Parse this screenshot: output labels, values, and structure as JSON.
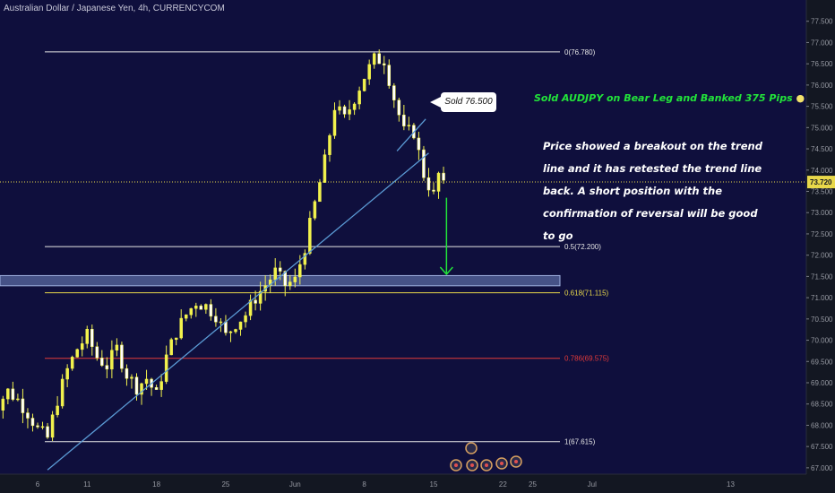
{
  "header": {
    "title": "Australian Dollar / Japanese Yen, 4h, CURRENCYCOM"
  },
  "colors": {
    "bg": "#0f0f3d",
    "axis_bg": "#131722",
    "candle": "#f2f24d",
    "trend": "#5b9bd5",
    "fib_white": "#e6e6e6",
    "fib_yellow": "#e8d84a",
    "fib_red": "#e23a3a",
    "arrow": "#22e43a",
    "zone": "#6a7aa8"
  },
  "annotations": {
    "green_note": "Sold AUDJPY on Bear Leg and Banked 375 Pips",
    "white_note": "Price showed a breakout on the trend line and it has retested the trend line back. A short position with the confirmation of reversal will be good to go",
    "sold_callout": "Sold 76.500"
  },
  "chart_data": {
    "type": "candlestick",
    "title": "Australian Dollar / Japanese Yen, 4h, CURRENCYCOM",
    "ylim": [
      66.85,
      78.0
    ],
    "price_ticks": [
      "77.500",
      "77.000",
      "76.500",
      "76.000",
      "75.500",
      "75.000",
      "74.500",
      "74.000",
      "73.500",
      "73.000",
      "72.500",
      "72.000",
      "71.500",
      "71.000",
      "70.500",
      "70.000",
      "69.500",
      "69.000",
      "68.500",
      "68.000",
      "67.500",
      "67.000"
    ],
    "price_tick_values": [
      77.5,
      77.0,
      76.5,
      76.0,
      75.5,
      75.0,
      74.5,
      74.0,
      73.5,
      73.0,
      72.5,
      72.0,
      71.5,
      71.0,
      70.5,
      70.0,
      69.5,
      69.0,
      68.5,
      68.0,
      67.5,
      67.0
    ],
    "time_ticks": [
      {
        "label": "6",
        "day": 6
      },
      {
        "label": "11",
        "day": 11
      },
      {
        "label": "18",
        "day": 18
      },
      {
        "label": "25",
        "day": 25
      },
      {
        "label": "Jun",
        "day": 32
      },
      {
        "label": "8",
        "day": 39
      },
      {
        "label": "15",
        "day": 46
      },
      {
        "label": "22",
        "day": 53
      },
      {
        "label": "25",
        "day": 56
      },
      {
        "label": "Jul",
        "day": 62
      },
      {
        "label": "13",
        "day": 76
      }
    ],
    "current_price": {
      "label": "73.720",
      "value": 73.72
    },
    "fib_levels": [
      {
        "label": "0(76.780)",
        "value": 76.78,
        "color": "#e6e6e6"
      },
      {
        "label": "0.5(72.200)",
        "value": 72.2,
        "color": "#e6e6e6"
      },
      {
        "label": "0.618(71.115)",
        "value": 71.115,
        "color": "#e8d84a"
      },
      {
        "label": "0.786(69.575)",
        "value": 69.575,
        "color": "#e23a3a"
      },
      {
        "label": "1(67.615)",
        "value": 67.615,
        "color": "#e6e6e6"
      }
    ],
    "support_zone": {
      "low": 71.28,
      "high": 71.52
    },
    "trend_line": {
      "start": {
        "day": 7.0,
        "value": 66.95
      },
      "end": {
        "day": 45.5,
        "value": 74.4
      }
    },
    "bear_leg_line": {
      "start": {
        "day": 42.3,
        "value": 74.45
      },
      "end": {
        "day": 45.2,
        "value": 75.2
      }
    },
    "target_arrow": {
      "day": 47.3,
      "from": 73.35,
      "to": 71.55
    },
    "price_path": [
      [
        1,
        68.8
      ],
      [
        2,
        68.5
      ],
      [
        3,
        68.8
      ],
      [
        4,
        68.6
      ],
      [
        5,
        68.3
      ],
      [
        6,
        67.9
      ],
      [
        7,
        67.7
      ],
      [
        8,
        68.6
      ],
      [
        9,
        69.3
      ],
      [
        10,
        69.8
      ],
      [
        11,
        70.1
      ],
      [
        12,
        69.6
      ],
      [
        13,
        69.4
      ],
      [
        14,
        69.8
      ],
      [
        15,
        69.2
      ],
      [
        16,
        68.9
      ],
      [
        17,
        69.1
      ],
      [
        18,
        68.7
      ],
      [
        19,
        69.6
      ],
      [
        20,
        70.2
      ],
      [
        21,
        70.6
      ],
      [
        22,
        70.9
      ],
      [
        23,
        70.8
      ],
      [
        24,
        70.6
      ],
      [
        25,
        70.1
      ],
      [
        26,
        70.4
      ],
      [
        27,
        70.6
      ],
      [
        28,
        71.0
      ],
      [
        29,
        71.3
      ],
      [
        30,
        71.6
      ],
      [
        31,
        71.3
      ],
      [
        32,
        71.4
      ],
      [
        33,
        72.2
      ],
      [
        34,
        73.2
      ],
      [
        35,
        74.2
      ],
      [
        36,
        75.5
      ],
      [
        37,
        75.2
      ],
      [
        38,
        75.7
      ],
      [
        39,
        76.2
      ],
      [
        40,
        76.6
      ],
      [
        41,
        76.6
      ],
      [
        42,
        75.7
      ],
      [
        43,
        74.9
      ],
      [
        44,
        74.9
      ],
      [
        45,
        73.9
      ],
      [
        46,
        73.4
      ],
      [
        46.5,
        73.9
      ],
      [
        47,
        73.6
      ]
    ]
  }
}
